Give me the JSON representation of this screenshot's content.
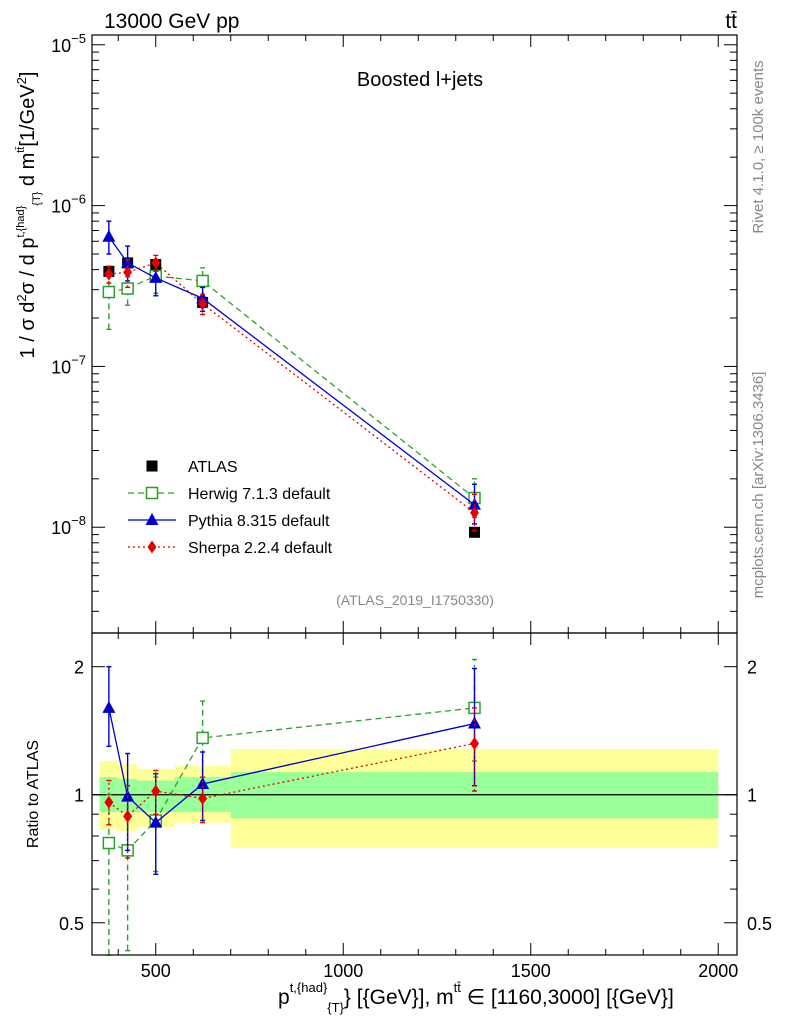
{
  "header": {
    "energy_label": "13000 GeV pp",
    "process_label": "tt̄"
  },
  "side_labels": {
    "rivet": "Rivet 4.1.0, ≥ 100k events",
    "mcplots": "mcplots.cern.ch [arXiv:1306.3436]"
  },
  "chart_data": [
    {
      "type": "line",
      "panel": "main",
      "title": "Boosted l+jets",
      "analysis_id": "(ATLAS_2019_I1750330)",
      "ylabel": "1 / σ d²σ / d p^{t,{had}}_{T} d m^{tt̄} [1/GeV²]",
      "yscale": "log",
      "xlim": [
        330,
        2050
      ],
      "ylim": [
        2.2e-09,
        1.15e-05
      ],
      "y_ticks": [
        {
          "value": 1e-08,
          "label": "10",
          "exp": "−8"
        },
        {
          "value": 1e-07,
          "label": "10",
          "exp": "−7"
        },
        {
          "value": 1e-06,
          "label": "10",
          "exp": "−6"
        },
        {
          "value": 1e-05,
          "label": "10",
          "exp": "−5"
        }
      ],
      "legend_position": "lower-left",
      "series": [
        {
          "name": "ATLAS",
          "color": "#000000",
          "marker": "filled-square",
          "line": "none",
          "x": [
            375,
            425,
            500,
            625,
            1350
          ],
          "y": [
            3.9e-07,
            4.4e-07,
            4.3e-07,
            2.5e-07,
            9.3e-09
          ]
        },
        {
          "name": "Herwig 7.1.3 default",
          "color": "#2ca02c",
          "marker": "open-square",
          "line": "dashed",
          "x": [
            375,
            425,
            500,
            625,
            1350
          ],
          "y": [
            2.9e-07,
            3.05e-07,
            3.65e-07,
            3.4e-07,
            1.52e-08
          ],
          "y_low": [
            1.7e-07,
            2.4e-07,
            2.85e-07,
            2.7e-07,
            1.15e-08
          ],
          "y_high": [
            3.7e-07,
            3.6e-07,
            4.3e-07,
            4.1e-07,
            2e-08
          ]
        },
        {
          "name": "Pythia 8.315 default",
          "color": "#0000cc",
          "marker": "filled-triangle",
          "line": "solid",
          "x": [
            375,
            425,
            500,
            625,
            1350
          ],
          "y": [
            6.4e-07,
            4.4e-07,
            3.55e-07,
            2.65e-07,
            1.38e-08
          ],
          "y_low": [
            5e-07,
            3.4e-07,
            2.75e-07,
            2.2e-07,
            1.05e-08
          ],
          "y_high": [
            8e-07,
            5.6e-07,
            4.5e-07,
            3.1e-07,
            1.85e-08
          ]
        },
        {
          "name": "Sherpa 2.2.4 default",
          "color": "#e60000",
          "marker": "filled-diamond",
          "line": "dotted",
          "x": [
            375,
            425,
            500,
            625,
            1350
          ],
          "y": [
            3.75e-07,
            3.85e-07,
            4.4e-07,
            2.45e-07,
            1.23e-08
          ],
          "y_low": [
            3.3e-07,
            3.1e-07,
            3.9e-07,
            2.1e-07,
            9.5e-09
          ],
          "y_high": [
            4.2e-07,
            4.6e-07,
            4.9e-07,
            2.8e-07,
            1.6e-08
          ]
        }
      ]
    },
    {
      "type": "line",
      "panel": "ratio",
      "xlabel": "p^{t,{had}}_{T} [{GeV}], m^{tt̄} ∈ [1160,3000] [{GeV}]",
      "ylabel": "Ratio to ATLAS",
      "yscale": "log",
      "xlim": [
        330,
        2050
      ],
      "ylim": [
        0.42,
        2.4
      ],
      "reference_line": 1,
      "y_ticks": [
        {
          "value": 0.5,
          "label": "0.5"
        },
        {
          "value": 1,
          "label": "1"
        },
        {
          "value": 2,
          "label": "2"
        }
      ],
      "x_ticks": [
        {
          "value": 500,
          "label": "500"
        },
        {
          "value": 1000,
          "label": "1000"
        },
        {
          "value": 1500,
          "label": "1500"
        },
        {
          "value": 2000,
          "label": "2000"
        }
      ],
      "uncertainty_bands": [
        {
          "x_low": 350,
          "x_high": 400,
          "stat_low": 0.91,
          "stat_high": 1.1,
          "total_low": 0.83,
          "total_high": 1.2
        },
        {
          "x_low": 400,
          "x_high": 450,
          "stat_low": 0.91,
          "stat_high": 1.09,
          "total_low": 0.82,
          "total_high": 1.18
        },
        {
          "x_low": 450,
          "x_high": 550,
          "stat_low": 0.91,
          "stat_high": 1.08,
          "total_low": 0.84,
          "total_high": 1.15
        },
        {
          "x_low": 550,
          "x_high": 700,
          "stat_low": 0.91,
          "stat_high": 1.1,
          "total_low": 0.86,
          "total_high": 1.17
        },
        {
          "x_low": 700,
          "x_high": 2000,
          "stat_low": 0.88,
          "stat_high": 1.13,
          "total_low": 0.75,
          "total_high": 1.28
        }
      ],
      "series": [
        {
          "name": "Herwig 7.1.3 default",
          "color": "#2ca02c",
          "marker": "open-square",
          "line": "dashed",
          "x": [
            375,
            425,
            500,
            625,
            1350
          ],
          "y": [
            0.77,
            0.74,
            0.87,
            1.36,
            1.6
          ],
          "y_low": [
            0.42,
            0.43,
            0.66,
            1.05,
            1.2
          ],
          "y_high": [
            1.0,
            1.0,
            1.1,
            1.66,
            2.08
          ]
        },
        {
          "name": "Pythia 8.315 default",
          "color": "#0000cc",
          "marker": "filled-triangle",
          "line": "solid",
          "x": [
            375,
            425,
            500,
            625,
            1350
          ],
          "y": [
            1.6,
            0.99,
            0.86,
            1.06,
            1.47
          ],
          "y_low": [
            1.3,
            0.74,
            0.65,
            0.87,
            1.05
          ],
          "y_high": [
            2.0,
            1.25,
            1.12,
            1.26,
            1.98
          ]
        },
        {
          "name": "Sherpa 2.2.4 default",
          "color": "#e60000",
          "marker": "filled-diamond",
          "line": "dotted",
          "x": [
            375,
            425,
            500,
            625,
            1350
          ],
          "y": [
            0.96,
            0.89,
            1.02,
            0.98,
            1.32
          ],
          "y_low": [
            0.85,
            0.71,
            0.9,
            0.86,
            1.02
          ],
          "y_high": [
            1.08,
            1.05,
            1.14,
            1.1,
            1.6
          ]
        }
      ]
    }
  ]
}
